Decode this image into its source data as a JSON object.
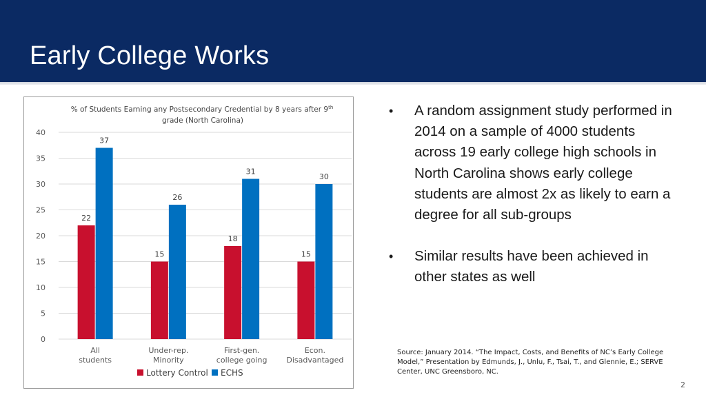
{
  "slide": {
    "title": "Early College Works",
    "page_number": "2"
  },
  "bullets": [
    "A random assignment study performed in 2014 on a sample of 4000 students across 19 early college high schools in North Carolina shows early college students are almost 2x as likely to earn a degree for all sub-groups",
    "Similar results have been achieved in other states as well"
  ],
  "source": "Source: January 2014. “The Impact, Costs, and Benefits of NC’s Early College Model,” Presentation by Edmunds, J., Unlu, F., Tsai, T., and Glennie, E.; SERVE Center, UNC Greensboro, NC.",
  "chart_data": {
    "type": "bar",
    "title_line1": "% of Students Earning any Postsecondary Credential by 8 years after 9",
    "title_sup": "th",
    "title_line2": "grade (North Carolina)",
    "categories": [
      [
        "All",
        "students"
      ],
      [
        "Under-rep.",
        "Minority"
      ],
      [
        "First-gen.",
        "college going"
      ],
      [
        "Econ.",
        "Disadvantaged"
      ]
    ],
    "series": [
      {
        "name": "Lottery Control",
        "color": "#c8102e",
        "values": [
          22,
          15,
          18,
          15
        ]
      },
      {
        "name": "ECHS",
        "color": "#0070c0",
        "values": [
          37,
          26,
          31,
          30
        ]
      }
    ],
    "ylim": [
      0,
      40
    ],
    "yticks": [
      0,
      5,
      10,
      15,
      20,
      25,
      30,
      35,
      40
    ],
    "grid": true,
    "legend": "bottom"
  }
}
